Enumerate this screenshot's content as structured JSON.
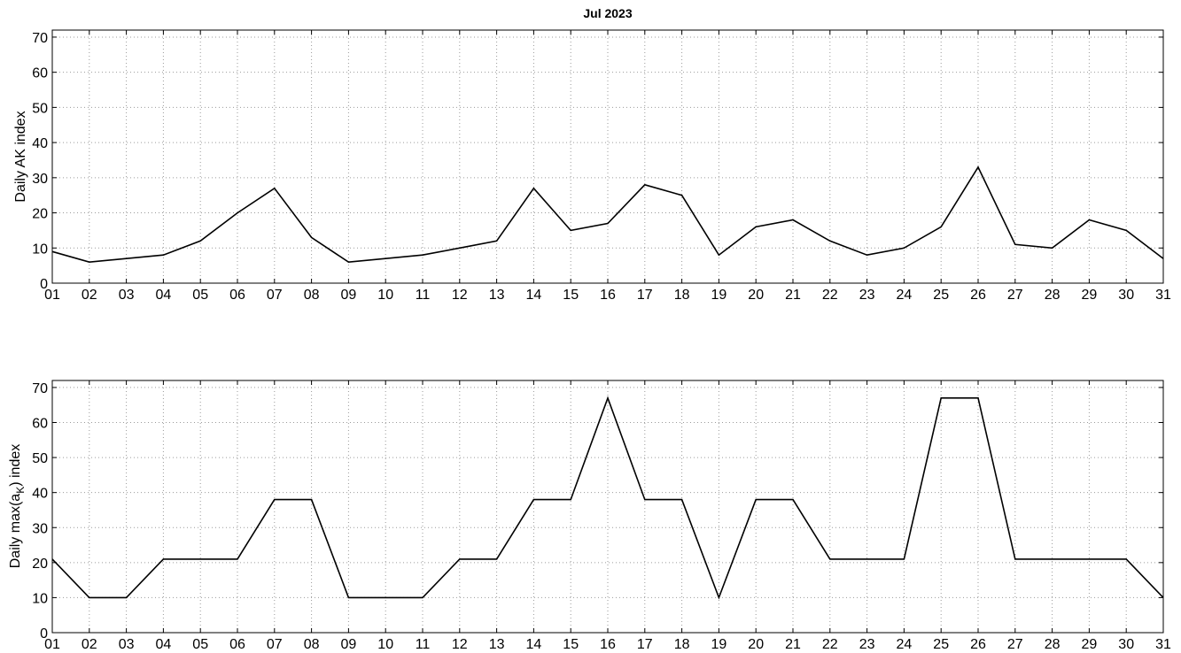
{
  "chart_data": [
    {
      "type": "line",
      "title": "Jul 2023",
      "xlabel": "",
      "ylabel": "Daily AK index",
      "ylim": [
        0,
        72
      ],
      "yticks": [
        0,
        10,
        20,
        30,
        40,
        50,
        60,
        70
      ],
      "grid": true,
      "x": [
        "01",
        "02",
        "03",
        "04",
        "05",
        "06",
        "07",
        "08",
        "09",
        "10",
        "11",
        "12",
        "13",
        "14",
        "15",
        "16",
        "17",
        "18",
        "19",
        "20",
        "21",
        "22",
        "23",
        "24",
        "25",
        "26",
        "27",
        "28",
        "29",
        "30",
        "31"
      ],
      "series": [
        {
          "values": [
            9,
            6,
            7,
            8,
            12,
            20,
            27,
            13,
            6,
            7,
            8,
            10,
            12,
            27,
            15,
            17,
            28,
            25,
            8,
            16,
            18,
            12,
            8,
            10,
            16,
            33,
            11,
            10,
            18,
            15,
            7
          ]
        }
      ]
    },
    {
      "type": "line",
      "title": "",
      "xlabel": "",
      "ylabel": "Daily max(a",
      "ylabel_sub": "K",
      "ylabel_tail": ") index",
      "ylim": [
        0,
        72
      ],
      "yticks": [
        0,
        10,
        20,
        30,
        40,
        50,
        60,
        70
      ],
      "grid": true,
      "x": [
        "01",
        "02",
        "03",
        "04",
        "05",
        "06",
        "07",
        "08",
        "09",
        "10",
        "11",
        "12",
        "13",
        "14",
        "15",
        "16",
        "17",
        "18",
        "19",
        "20",
        "21",
        "22",
        "23",
        "24",
        "25",
        "26",
        "27",
        "28",
        "29",
        "30",
        "31"
      ],
      "series": [
        {
          "values": [
            21,
            10,
            10,
            21,
            21,
            21,
            38,
            38,
            10,
            10,
            10,
            21,
            21,
            38,
            38,
            67,
            38,
            38,
            10,
            38,
            38,
            21,
            21,
            21,
            67,
            67,
            21,
            21,
            21,
            21,
            10
          ]
        }
      ]
    }
  ]
}
